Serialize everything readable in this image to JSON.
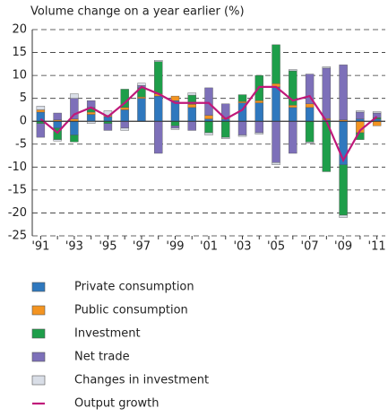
{
  "chart_data": {
    "type": "bar",
    "stacked": true,
    "y_label": "Volume change on a year earlier (%)",
    "categories": [
      "'91",
      null,
      "'93",
      null,
      "'95",
      null,
      "'97",
      null,
      "'99",
      null,
      "'01",
      null,
      "'03",
      null,
      "'05",
      null,
      "'07",
      null,
      "'09",
      null,
      "'11"
    ],
    "ylim": [
      -25,
      20
    ],
    "yticks": [
      -25,
      -20,
      -15,
      -10,
      -5,
      0,
      5,
      10,
      15,
      20
    ],
    "grid": true,
    "series": [
      {
        "name": "Private consumption",
        "color": "#2f78be",
        "values": [
          2,
          -1.5,
          -3,
          1.5,
          1,
          2.5,
          5,
          5.5,
          4.5,
          3,
          0.5,
          0.5,
          4,
          4,
          7.5,
          3,
          3,
          0.3,
          -9.5,
          0.5,
          0.5
        ]
      },
      {
        "name": "Public consumption",
        "color": "#f39421",
        "values": [
          0.5,
          0.3,
          0.5,
          0.5,
          0.3,
          0.5,
          0.3,
          0.5,
          1,
          0.7,
          0.8,
          0.3,
          0.3,
          0.5,
          0.7,
          0.5,
          0.8,
          0.3,
          0.3,
          -2.5,
          -1
        ]
      },
      {
        "name": "Investment",
        "color": "#1e9e4a",
        "values": [
          -0.5,
          -2.5,
          -1.5,
          1,
          -0.5,
          4,
          2,
          7,
          -1,
          2,
          -2.5,
          -3.5,
          1.5,
          5.5,
          8.5,
          7.5,
          -4.5,
          -11,
          -11,
          -1.5,
          0.3
        ]
      },
      {
        "name": "Net trade",
        "color": "#7d70b9",
        "values": [
          -3,
          1.5,
          4.5,
          1.5,
          -1.5,
          -1.5,
          0.5,
          -7,
          -0.5,
          -2,
          6,
          3,
          -3,
          -2.5,
          -9,
          -7,
          6.5,
          11,
          12,
          1.5,
          1
        ]
      },
      {
        "name": "Changes in investment",
        "color": "#d9dee7",
        "values": [
          0.8,
          -0.3,
          1,
          -0.5,
          1,
          -0.5,
          0.5,
          0.3,
          -0.3,
          0.5,
          -0.5,
          -0.3,
          -0.3,
          -0.3,
          -0.5,
          0.3,
          -0.3,
          0.3,
          -0.5,
          0.3,
          0.3
        ]
      },
      {
        "name": "Output growth",
        "color": "#c0187a",
        "type": "line",
        "values": [
          0.5,
          -2.5,
          1.5,
          3,
          1,
          4,
          7.5,
          6,
          4,
          4,
          4,
          0.5,
          2.5,
          7.5,
          7.5,
          4.5,
          5.5,
          0,
          -8.5,
          -2,
          1
        ]
      }
    ]
  }
}
